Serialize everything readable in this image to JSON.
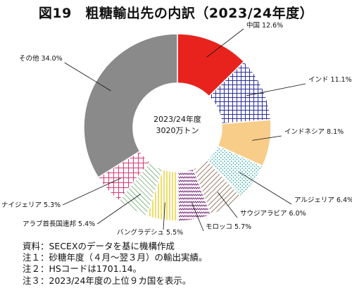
{
  "chart_data": {
    "type": "pie",
    "title": "図19　粗糖輸出先の内訳（2023/24年度）",
    "center_label": [
      "2023/24年度",
      "3020万トン"
    ],
    "slices": [
      {
        "label": "中国",
        "value": 12.6,
        "value_text": "12.6%",
        "color": "#e8231e",
        "pattern": "solid"
      },
      {
        "label": "インド",
        "value": 11.1,
        "value_text": "11.1%",
        "color": "#2b2f9e",
        "pattern": "grid"
      },
      {
        "label": "インドネシア",
        "value": 8.1,
        "value_text": "8.1%",
        "color": "#f8cd8a",
        "pattern": "solid"
      },
      {
        "label": "アルジェリア",
        "value": 6.4,
        "value_text": "6.4%",
        "color": "#35a6a6",
        "pattern": "dots"
      },
      {
        "label": "サウジアラビア",
        "value": 6.0,
        "value_text": "6.0%",
        "color": "#9b7b66",
        "pattern": "diag"
      },
      {
        "label": "モロッコ",
        "value": 5.7,
        "value_text": "5.7%",
        "color": "#7a2c78",
        "pattern": "zigzag"
      },
      {
        "label": "バングラデシュ",
        "value": 5.5,
        "value_text": "5.5%",
        "color": "#e7cf2a",
        "pattern": "vlines"
      },
      {
        "label": "アラブ首長国連邦",
        "value": 5.4,
        "value_text": "5.4%",
        "color": "#3a8b3a",
        "pattern": "diag"
      },
      {
        "label": "ナイジェリア",
        "value": 5.3,
        "value_text": "5.3%",
        "color": "#d93b77",
        "pattern": "grid"
      },
      {
        "label": "その他",
        "value": 34.0,
        "value_text": "34.0%",
        "color": "#8a8a8a",
        "pattern": "solid"
      }
    ]
  },
  "notes": [
    "資料：SECEXのデータを基に機構作成",
    "注１：砂糖年度（４月～翌３月）の輸出実績。",
    "注２：HSコードは1701.14。",
    "注３：2023/24年度の上位９カ国を表示。"
  ]
}
